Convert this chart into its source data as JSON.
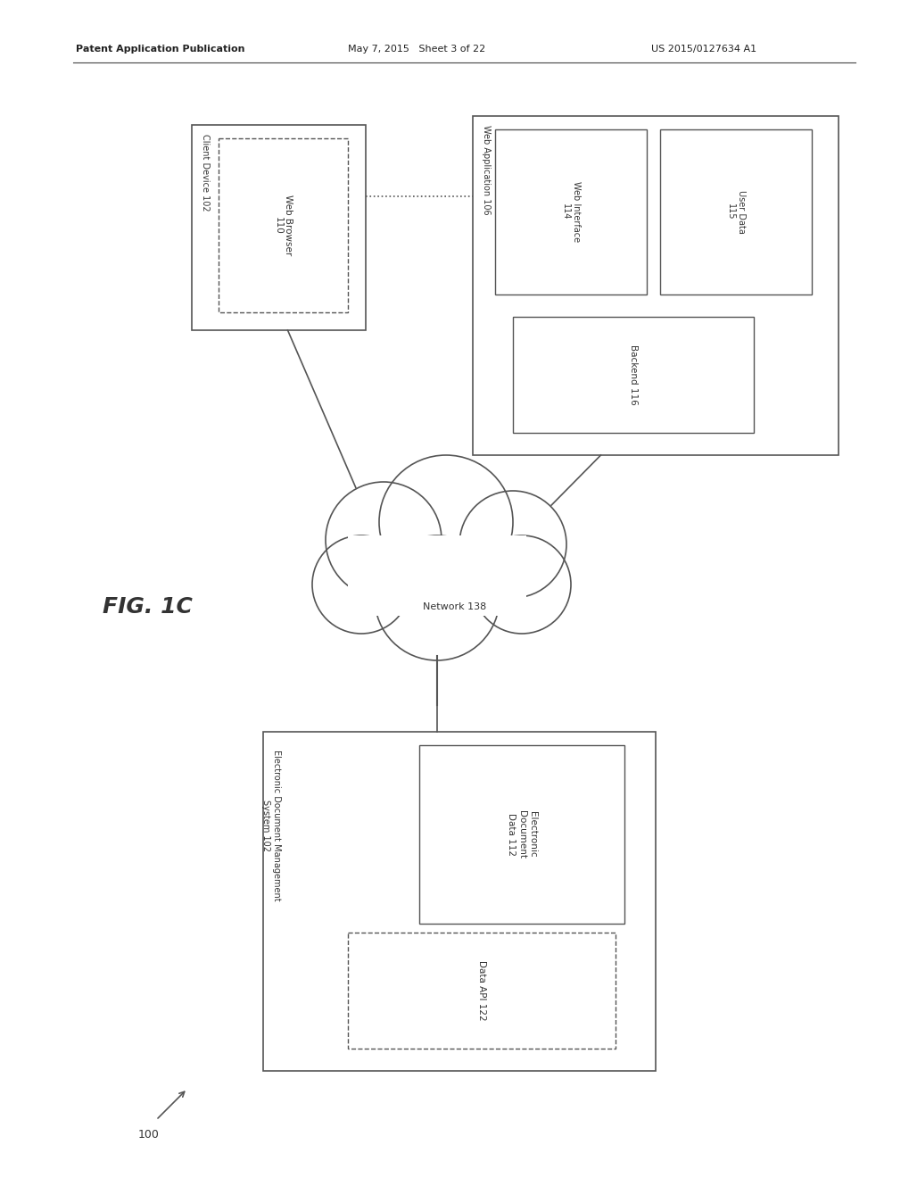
{
  "header_left": "Patent Application Publication",
  "header_mid": "May 7, 2015   Sheet 3 of 22",
  "header_right": "US 2015/0127634 A1",
  "fig_label": "FIG. 1C",
  "diagram_label": "100",
  "client_device_label": "Client Device 102",
  "web_browser_label": "Web Browser\n110",
  "web_app_label": "Web Application 106",
  "web_interface_label": "Web Interface\n114",
  "user_data_label": "User Data\n115",
  "backend_label": "Backend 116",
  "network_label": "Network 138",
  "edms_label": "Electronic Document Management\nSystem 102",
  "elec_doc_label": "Electronic\nDocument\nData 112",
  "data_api_label": "Data API 122",
  "bg_color": "#ffffff",
  "box_edge_color": "#555555",
  "text_color": "#333333",
  "line_color": "#555555"
}
